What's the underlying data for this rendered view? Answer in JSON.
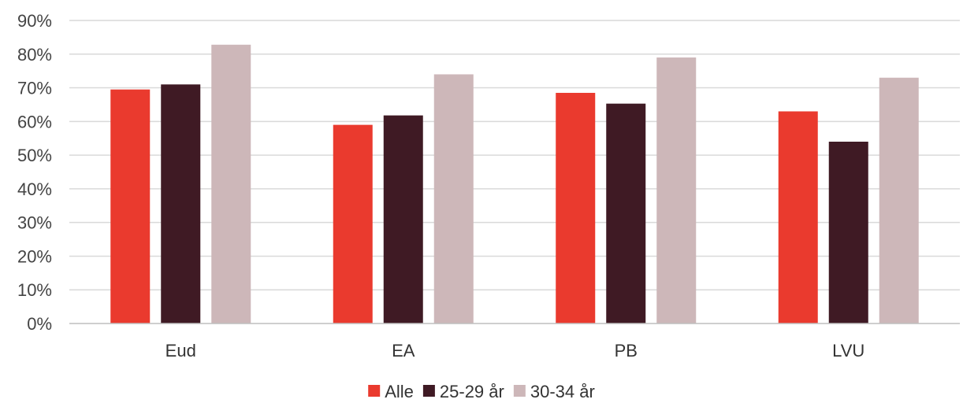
{
  "chart_data": {
    "type": "bar",
    "title": "",
    "xlabel": "",
    "ylabel": "",
    "ylim": [
      0,
      90
    ],
    "y_tick_format": "percent",
    "y_ticks": [
      "0%",
      "10%",
      "20%",
      "30%",
      "40%",
      "50%",
      "60%",
      "70%",
      "80%",
      "90%"
    ],
    "grid": true,
    "legend_position": "bottom",
    "categories": [
      "Eud",
      "EA",
      "PB",
      "LVU"
    ],
    "series": [
      {
        "name": "Alle",
        "color": "#ea3a2e",
        "values": [
          69.5,
          59,
          68.5,
          63
        ]
      },
      {
        "name": "25-29 år",
        "color": "#3f1a24",
        "values": [
          71,
          61.8,
          65.3,
          54
        ]
      },
      {
        "name": "30-34 år",
        "color": "#cdb7b9",
        "values": [
          82.8,
          74,
          79,
          73
        ]
      }
    ]
  }
}
